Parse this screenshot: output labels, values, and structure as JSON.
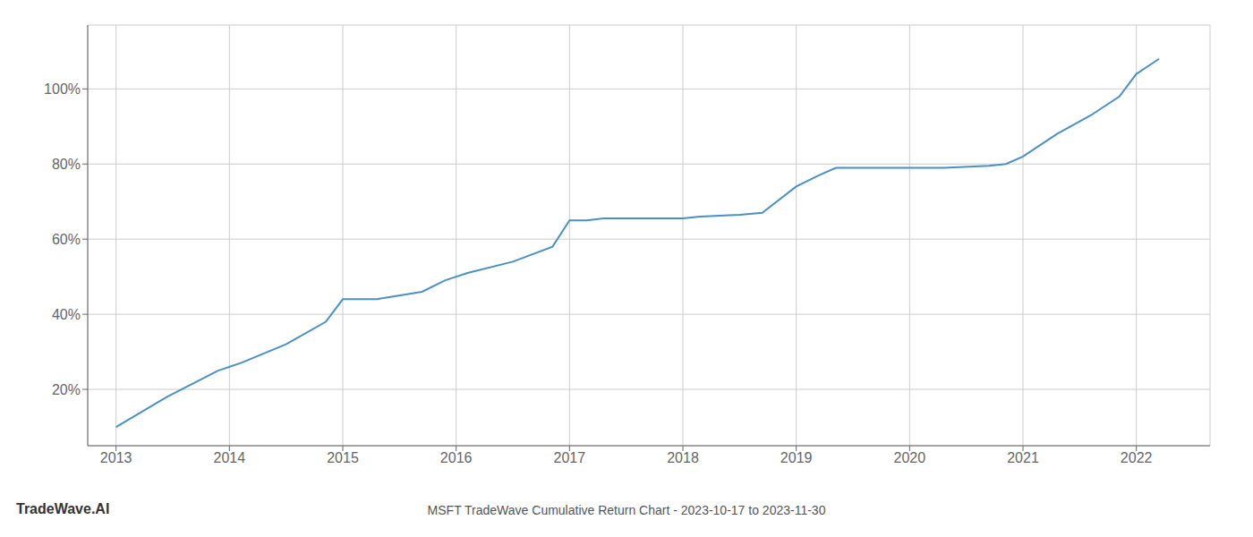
{
  "chart_data": {
    "type": "line",
    "title": "MSFT TradeWave Cumulative Return Chart - 2023-10-17 to 2023-11-30",
    "annotations": [
      "TradeWave.AI"
    ],
    "x": [
      2013.0,
      2013.45,
      2013.9,
      2014.1,
      2014.5,
      2014.85,
      2015.0,
      2015.3,
      2015.7,
      2015.9,
      2016.1,
      2016.5,
      2016.85,
      2017.0,
      2017.15,
      2017.3,
      2017.6,
      2017.85,
      2018.0,
      2018.15,
      2018.5,
      2018.7,
      2019.0,
      2019.2,
      2019.35,
      2019.6,
      2019.85,
      2020.0,
      2020.3,
      2020.7,
      2020.85,
      2021.0,
      2021.3,
      2021.6,
      2021.85,
      2022.0,
      2022.2
    ],
    "values": [
      0.1,
      0.18,
      0.25,
      0.27,
      0.32,
      0.38,
      0.44,
      0.44,
      0.46,
      0.49,
      0.51,
      0.54,
      0.58,
      0.65,
      0.65,
      0.655,
      0.655,
      0.655,
      0.655,
      0.66,
      0.665,
      0.67,
      0.74,
      0.77,
      0.79,
      0.79,
      0.79,
      0.79,
      0.79,
      0.795,
      0.8,
      0.82,
      0.88,
      0.93,
      0.98,
      1.04,
      1.08
    ],
    "color": "#4a90c4",
    "xlim": [
      2012.75,
      2022.65
    ],
    "ylim": [
      0.05,
      1.17
    ],
    "xticks": [
      2013,
      2014,
      2015,
      2016,
      2017,
      2018,
      2019,
      2020,
      2021,
      2022
    ],
    "yticks": [
      {
        "value": 0.2,
        "label": "20%"
      },
      {
        "value": 0.4,
        "label": "40%"
      },
      {
        "value": 0.6,
        "label": "60%"
      },
      {
        "value": 0.8,
        "label": "80%"
      },
      {
        "value": 1.0,
        "label": "100%"
      }
    ],
    "grid": true
  }
}
